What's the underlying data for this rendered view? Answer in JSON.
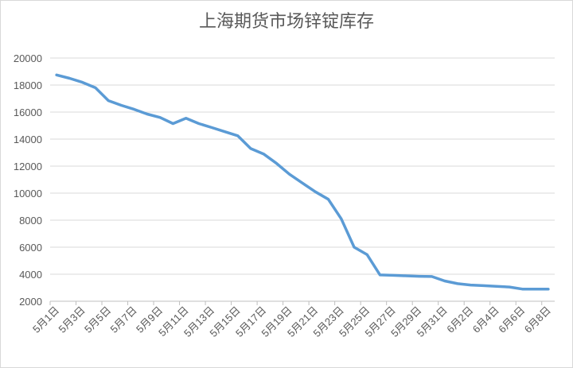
{
  "chart_data": {
    "type": "line",
    "title": "上海期货市场锌锭库存",
    "categories": [
      "5月1日",
      null,
      "5月3日",
      null,
      "5月5日",
      null,
      "5月7日",
      null,
      "5月9日",
      null,
      "5月11日",
      null,
      "5月13日",
      null,
      "5月15日",
      null,
      "5月17日",
      null,
      "5月19日",
      null,
      "5月21日",
      null,
      "5月23日",
      null,
      "5月25日",
      null,
      "5月27日",
      null,
      "5月29日",
      null,
      "5月31日",
      null,
      "6月2日",
      null,
      "6月4日",
      null,
      "6月6日",
      null,
      "6月8日"
    ],
    "values": [
      18750,
      18500,
      18200,
      17800,
      16850,
      16500,
      16200,
      15850,
      15600,
      15150,
      15550,
      15150,
      14850,
      14550,
      14250,
      13300,
      12900,
      12200,
      11400,
      10750,
      10100,
      9550,
      8100,
      6000,
      5450,
      3950,
      3920,
      3880,
      3850,
      3830,
      3500,
      3300,
      3200,
      3150,
      3100,
      3050,
      2900,
      2900,
      2900
    ],
    "color": "#5b9bd5",
    "ylim": [
      2000,
      20000
    ],
    "yticks": [
      2000,
      4000,
      6000,
      8000,
      10000,
      12000,
      14000,
      16000,
      18000,
      20000
    ],
    "grid": true
  }
}
